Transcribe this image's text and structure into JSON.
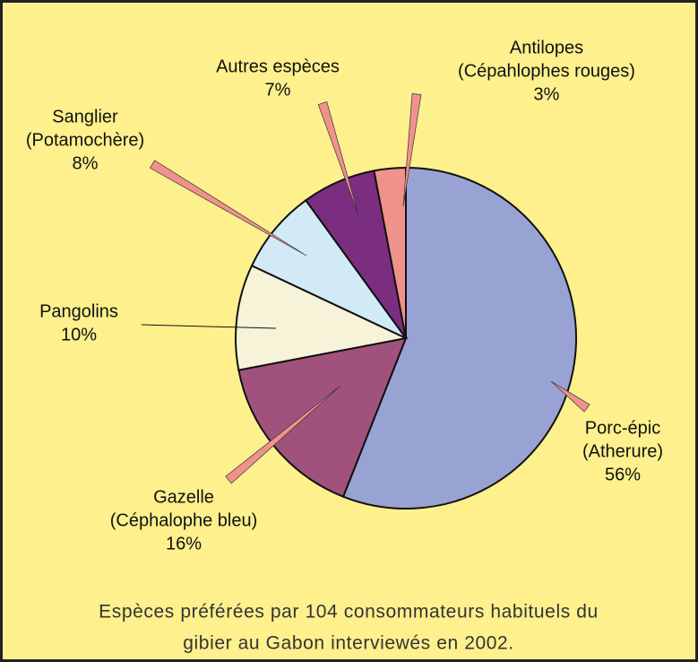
{
  "chart_data": {
    "type": "pie",
    "categories": [
      [
        "Porc-épic",
        "(Atherure)"
      ],
      [
        "Gazelle",
        "(Céphalophe bleu)"
      ],
      [
        "Pangolins"
      ],
      [
        "Sanglier",
        "(Potamochère)"
      ],
      [
        "Autres espèces"
      ],
      [
        "Antilopes",
        "(Cépahlophes rouges)"
      ]
    ],
    "values": [
      56,
      16,
      10,
      8,
      7,
      3
    ],
    "value_labels": [
      "56%",
      "16%",
      "10%",
      "8%",
      "7%",
      "3%"
    ],
    "colors": [
      "#99a3d3",
      "#a0527c",
      "#f6f3d9",
      "#d2eaf6",
      "#7b2e80",
      "#f0928c"
    ],
    "caption": [
      "Espèces préférées par 104 consommateurs habituels du",
      "gibier au Gabon interviewés en 2002."
    ]
  }
}
